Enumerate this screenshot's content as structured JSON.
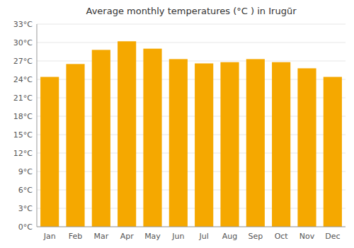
{
  "chart_data": {
    "type": "bar",
    "title": "Average monthly temperatures (°C ) in Irugūr",
    "categories": [
      "Jan",
      "Feb",
      "Mar",
      "Apr",
      "May",
      "Jun",
      "Jul",
      "Aug",
      "Sep",
      "Oct",
      "Nov",
      "Dec"
    ],
    "values": [
      24.4,
      26.5,
      28.8,
      30.2,
      29.0,
      27.3,
      26.6,
      26.8,
      27.3,
      26.8,
      25.8,
      24.4
    ],
    "color": "#F5A800",
    "ylim": [
      0,
      33
    ],
    "yticks": [
      {
        "value": 0,
        "label": "0°C"
      },
      {
        "value": 3,
        "label": "3°C"
      },
      {
        "value": 6,
        "label": "6°C"
      },
      {
        "value": 9,
        "label": "9°C"
      },
      {
        "value": 12,
        "label": "12°C"
      },
      {
        "value": 15,
        "label": "15°C"
      },
      {
        "value": 18,
        "label": "18°C"
      },
      {
        "value": 21,
        "label": "21°C"
      },
      {
        "value": 24,
        "label": "24°C"
      },
      {
        "value": 27,
        "label": "27°C"
      },
      {
        "value": 30,
        "label": "30°C"
      },
      {
        "value": 33,
        "label": "33°C"
      }
    ],
    "grid": true
  }
}
